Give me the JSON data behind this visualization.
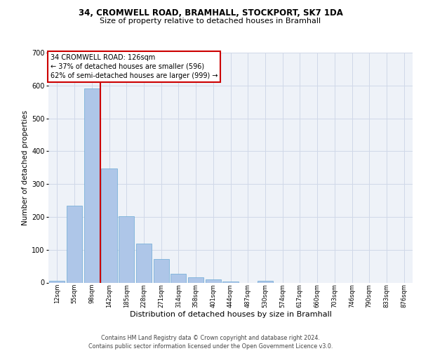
{
  "title_line1": "34, CROMWELL ROAD, BRAMHALL, STOCKPORT, SK7 1DA",
  "title_line2": "Size of property relative to detached houses in Bramhall",
  "xlabel": "Distribution of detached houses by size in Bramhall",
  "ylabel": "Number of detached properties",
  "footnote": "Contains HM Land Registry data © Crown copyright and database right 2024.\nContains public sector information licensed under the Open Government Licence v3.0.",
  "bar_labels": [
    "12sqm",
    "55sqm",
    "98sqm",
    "142sqm",
    "185sqm",
    "228sqm",
    "271sqm",
    "314sqm",
    "358sqm",
    "401sqm",
    "444sqm",
    "487sqm",
    "530sqm",
    "574sqm",
    "617sqm",
    "660sqm",
    "703sqm",
    "746sqm",
    "790sqm",
    "833sqm",
    "876sqm"
  ],
  "bar_values": [
    5,
    235,
    590,
    348,
    203,
    118,
    72,
    27,
    17,
    10,
    4,
    0,
    5,
    0,
    0,
    0,
    0,
    0,
    0,
    0,
    0
  ],
  "bar_color": "#aec6e8",
  "bar_edge_color": "#6aaad4",
  "grid_color": "#d0d8e8",
  "bg_color": "#eef2f8",
  "vline_x": 2.5,
  "vline_color": "#cc0000",
  "annotation_text": "34 CROMWELL ROAD: 126sqm\n← 37% of detached houses are smaller (596)\n62% of semi-detached houses are larger (999) →",
  "annotation_box_color": "#ffffff",
  "annotation_box_edge": "#cc0000",
  "ylim": [
    0,
    700
  ],
  "yticks": [
    0,
    100,
    200,
    300,
    400,
    500,
    600,
    700
  ],
  "title1_fontsize": 8.5,
  "title2_fontsize": 8.0,
  "ylabel_fontsize": 7.5,
  "xlabel_fontsize": 8.0,
  "footnote_fontsize": 5.8,
  "annotation_fontsize": 7.0,
  "xtick_fontsize": 6.0,
  "ytick_fontsize": 7.0
}
